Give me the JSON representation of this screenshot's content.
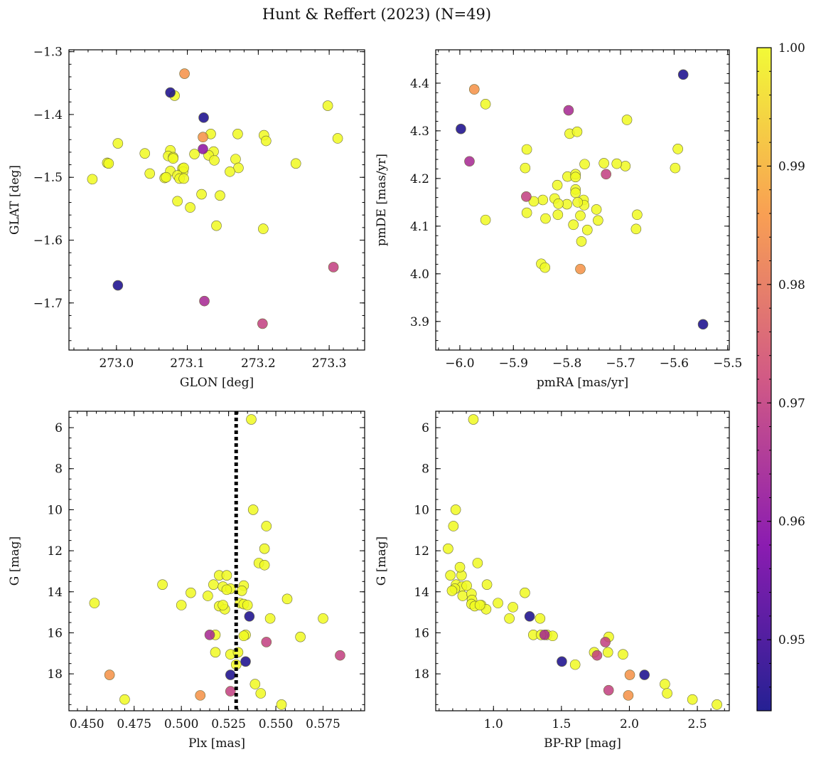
{
  "chart_data": {
    "title": "Hunt & Reffert (2023) (N=49)",
    "colorbar": {
      "range": [
        0.944,
        1.0
      ],
      "ticks": [
        "0.95",
        "0.96",
        "0.97",
        "0.98",
        "0.99",
        "1.00"
      ],
      "tick_values": [
        0.95,
        0.96,
        0.97,
        0.98,
        0.99,
        1.0
      ],
      "colormap": "plasma"
    },
    "panels": [
      {
        "type": "scatter",
        "xlabel": "GLON [deg]",
        "ylabel": "GLAT [deg]",
        "xlim": [
          272.933,
          273.35
        ],
        "ylim": [
          -1.775,
          -1.297
        ],
        "y_inverted": false,
        "xticks": [
          273.0,
          273.1,
          273.2,
          273.3
        ],
        "xtick_labels": [
          "273.0",
          "273.1",
          "273.2",
          "273.3"
        ],
        "yticks": [
          -1.3,
          -1.4,
          -1.5,
          -1.6,
          -1.7
        ],
        "ytick_labels": [
          "−1.3",
          "−1.4",
          "−1.5",
          "−1.6",
          "−1.7"
        ],
        "points": [
          [
            273.096,
            -1.335,
            0.985
          ],
          [
            273.076,
            -1.365,
            0.945
          ],
          [
            273.082,
            -1.37,
            1.0
          ],
          [
            273.123,
            -1.405,
            0.945
          ],
          [
            273.298,
            -1.386,
            1.0
          ],
          [
            273.122,
            -1.436,
            0.985
          ],
          [
            273.133,
            -1.431,
            1.0
          ],
          [
            273.171,
            -1.431,
            1.0
          ],
          [
            273.208,
            -1.433,
            1.0
          ],
          [
            273.211,
            -1.442,
            1.0
          ],
          [
            273.312,
            -1.438,
            1.0
          ],
          [
            273.002,
            -1.446,
            1.0
          ],
          [
            273.122,
            -1.455,
            0.96
          ],
          [
            273.137,
            -1.459,
            1.0
          ],
          [
            273.13,
            -1.465,
            1.0
          ],
          [
            273.138,
            -1.473,
            1.0
          ],
          [
            273.076,
            -1.457,
            1.0
          ],
          [
            273.04,
            -1.462,
            1.0
          ],
          [
            273.073,
            -1.466,
            1.0
          ],
          [
            273.08,
            -1.468,
            1.0
          ],
          [
            273.11,
            -1.463,
            1.0
          ],
          [
            273.168,
            -1.471,
            1.0
          ],
          [
            273.172,
            -1.485,
            1.0
          ],
          [
            273.16,
            -1.491,
            1.0
          ],
          [
            272.987,
            -1.477,
            1.0
          ],
          [
            272.989,
            -1.478,
            1.0
          ],
          [
            273.253,
            -1.478,
            1.0
          ],
          [
            273.047,
            -1.494,
            1.0
          ],
          [
            273.076,
            -1.49,
            1.0
          ],
          [
            273.093,
            -1.486,
            1.0
          ],
          [
            273.094,
            -1.491,
            1.0
          ],
          [
            273.086,
            -1.497,
            1.0
          ],
          [
            273.068,
            -1.501,
            1.0
          ],
          [
            273.089,
            -1.502,
            1.0
          ],
          [
            273.095,
            -1.502,
            1.0
          ],
          [
            272.966,
            -1.503,
            1.0
          ],
          [
            273.12,
            -1.527,
            1.0
          ],
          [
            273.146,
            -1.529,
            1.0
          ],
          [
            273.086,
            -1.538,
            1.0
          ],
          [
            273.104,
            -1.548,
            1.0
          ],
          [
            273.141,
            -1.577,
            1.0
          ],
          [
            273.207,
            -1.582,
            1.0
          ],
          [
            273.306,
            -1.643,
            0.97
          ],
          [
            273.002,
            -1.672,
            0.945
          ],
          [
            273.124,
            -1.697,
            0.965
          ],
          [
            273.206,
            -1.733,
            0.97
          ],
          [
            273.07,
            -1.5,
            1.0
          ],
          [
            273.08,
            -1.47,
            1.0
          ],
          [
            273.095,
            -1.485,
            1.0
          ]
        ]
      },
      {
        "type": "scatter",
        "xlabel": "pmRA [mas/yr]",
        "ylabel": "pmDE [mas/yr]",
        "xlim": [
          -6.045,
          -5.497
        ],
        "ylim": [
          3.84,
          4.47
        ],
        "y_inverted": false,
        "xticks": [
          -6.0,
          -5.9,
          -5.8,
          -5.7,
          -5.6,
          -5.5
        ],
        "xtick_labels": [
          "−6.0",
          "−5.9",
          "−5.8",
          "−5.7",
          "−5.6",
          "−5.5"
        ],
        "yticks": [
          3.9,
          4.0,
          4.1,
          4.2,
          4.3,
          4.4
        ],
        "ytick_labels": [
          "3.9",
          "4.0",
          "4.1",
          "4.2",
          "4.3",
          "4.4"
        ],
        "points": [
          [
            -5.583,
            4.418,
            0.945
          ],
          [
            -5.973,
            4.387,
            0.985
          ],
          [
            -5.952,
            4.356,
            1.0
          ],
          [
            -5.998,
            4.304,
            0.945
          ],
          [
            -5.797,
            4.343,
            0.965
          ],
          [
            -5.795,
            4.294,
            1.0
          ],
          [
            -5.781,
            4.298,
            1.0
          ],
          [
            -5.688,
            4.323,
            1.0
          ],
          [
            -5.982,
            4.236,
            0.965
          ],
          [
            -5.875,
            4.261,
            1.0
          ],
          [
            -5.878,
            4.222,
            1.0
          ],
          [
            -5.593,
            4.262,
            1.0
          ],
          [
            -5.598,
            4.222,
            1.0
          ],
          [
            -5.691,
            4.226,
            1.0
          ],
          [
            -5.767,
            4.23,
            1.0
          ],
          [
            -5.731,
            4.232,
            1.0
          ],
          [
            -5.707,
            4.231,
            1.0
          ],
          [
            -5.727,
            4.209,
            0.97
          ],
          [
            -5.799,
            4.204,
            1.0
          ],
          [
            -5.784,
            4.209,
            1.0
          ],
          [
            -5.784,
            4.203,
            1.0
          ],
          [
            -5.818,
            4.186,
            1.0
          ],
          [
            -5.784,
            4.177,
            1.0
          ],
          [
            -5.784,
            4.17,
            1.0
          ],
          [
            -5.876,
            4.162,
            0.97
          ],
          [
            -5.823,
            4.158,
            1.0
          ],
          [
            -5.845,
            4.155,
            1.0
          ],
          [
            -5.862,
            4.152,
            1.0
          ],
          [
            -5.8,
            4.146,
            1.0
          ],
          [
            -5.816,
            4.147,
            1.0
          ],
          [
            -5.769,
            4.155,
            1.0
          ],
          [
            -5.768,
            4.144,
            1.0
          ],
          [
            -5.875,
            4.128,
            1.0
          ],
          [
            -5.817,
            4.124,
            1.0
          ],
          [
            -5.84,
            4.116,
            1.0
          ],
          [
            -5.745,
            4.135,
            1.0
          ],
          [
            -5.775,
            4.122,
            1.0
          ],
          [
            -5.952,
            4.113,
            1.0
          ],
          [
            -5.742,
            4.112,
            1.0
          ],
          [
            -5.788,
            4.103,
            1.0
          ],
          [
            -5.762,
            4.092,
            1.0
          ],
          [
            -5.669,
            4.124,
            1.0
          ],
          [
            -5.671,
            4.094,
            1.0
          ],
          [
            -5.773,
            4.068,
            1.0
          ],
          [
            -5.848,
            4.021,
            1.0
          ],
          [
            -5.841,
            4.013,
            1.0
          ],
          [
            -5.775,
            4.01,
            0.985
          ],
          [
            -5.546,
            3.894,
            0.945
          ],
          [
            -5.78,
            4.15,
            1.0
          ]
        ]
      },
      {
        "type": "scatter",
        "xlabel": "Plx [mas]",
        "ylabel": "G [mag]",
        "xlim": [
          0.4405,
          0.597
        ],
        "ylim": [
          5.2,
          19.8
        ],
        "y_inverted": true,
        "vline": 0.529,
        "xticks": [
          0.45,
          0.475,
          0.5,
          0.525,
          0.55,
          0.575
        ],
        "xtick_labels": [
          "0.450",
          "0.475",
          "0.500",
          "0.525",
          "0.550",
          "0.575"
        ],
        "yticks": [
          6,
          8,
          10,
          12,
          14,
          16,
          18
        ],
        "ytick_labels": [
          "6",
          "8",
          "10",
          "12",
          "14",
          "16",
          "18"
        ],
        "points": [
          [
            0.537,
            5.6,
            1.0
          ],
          [
            0.538,
            10.0,
            1.0
          ],
          [
            0.545,
            10.8,
            1.0
          ],
          [
            0.544,
            11.9,
            1.0
          ],
          [
            0.541,
            12.6,
            1.0
          ],
          [
            0.544,
            12.7,
            1.0
          ],
          [
            0.52,
            13.2,
            1.0
          ],
          [
            0.524,
            13.2,
            1.0
          ],
          [
            0.49,
            13.65,
            1.0
          ],
          [
            0.517,
            13.65,
            1.0
          ],
          [
            0.522,
            13.75,
            1.0
          ],
          [
            0.526,
            13.85,
            1.0
          ],
          [
            0.533,
            13.7,
            1.0
          ],
          [
            0.524,
            13.9,
            1.0
          ],
          [
            0.505,
            14.05,
            1.0
          ],
          [
            0.514,
            14.2,
            1.0
          ],
          [
            0.454,
            14.55,
            1.0
          ],
          [
            0.556,
            14.35,
            1.0
          ],
          [
            0.531,
            14.55,
            1.0
          ],
          [
            0.533,
            14.6,
            1.0
          ],
          [
            0.535,
            14.65,
            1.0
          ],
          [
            0.5,
            14.65,
            1.0
          ],
          [
            0.52,
            14.7,
            1.0
          ],
          [
            0.523,
            14.85,
            1.0
          ],
          [
            0.536,
            15.2,
            0.945
          ],
          [
            0.547,
            15.3,
            1.0
          ],
          [
            0.575,
            15.3,
            1.0
          ],
          [
            0.515,
            16.1,
            0.965
          ],
          [
            0.518,
            16.1,
            1.0
          ],
          [
            0.534,
            16.1,
            1.0
          ],
          [
            0.533,
            16.15,
            1.0
          ],
          [
            0.563,
            16.2,
            1.0
          ],
          [
            0.545,
            16.45,
            0.97
          ],
          [
            0.584,
            17.1,
            0.97
          ],
          [
            0.518,
            16.95,
            1.0
          ],
          [
            0.526,
            17.05,
            1.0
          ],
          [
            0.53,
            16.95,
            1.0
          ],
          [
            0.534,
            17.4,
            0.945
          ],
          [
            0.529,
            17.55,
            1.0
          ],
          [
            0.462,
            18.05,
            0.985
          ],
          [
            0.526,
            18.05,
            0.945
          ],
          [
            0.539,
            18.5,
            1.0
          ],
          [
            0.526,
            18.85,
            0.97
          ],
          [
            0.542,
            18.95,
            1.0
          ],
          [
            0.51,
            19.05,
            0.985
          ],
          [
            0.47,
            19.25,
            1.0
          ],
          [
            0.553,
            19.5,
            1.0
          ],
          [
            0.532,
            13.95,
            1.0
          ],
          [
            0.522,
            14.65,
            1.0
          ]
        ]
      },
      {
        "type": "scatter",
        "xlabel": "BP-RP [mag]",
        "ylabel": "G [mag]",
        "xlim": [
          0.575,
          2.735
        ],
        "ylim": [
          5.2,
          19.8
        ],
        "y_inverted": true,
        "xticks": [
          1.0,
          1.5,
          2.0,
          2.5
        ],
        "xtick_labels": [
          "1.0",
          "1.5",
          "2.0",
          "2.5"
        ],
        "yticks": [
          6,
          8,
          10,
          12,
          14,
          16,
          18
        ],
        "ytick_labels": [
          "6",
          "8",
          "10",
          "12",
          "14",
          "16",
          "18"
        ],
        "points": [
          [
            0.852,
            5.6,
            1.0
          ],
          [
            0.722,
            10.0,
            1.0
          ],
          [
            0.705,
            10.8,
            1.0
          ],
          [
            0.666,
            11.9,
            1.0
          ],
          [
            0.883,
            12.6,
            1.0
          ],
          [
            0.683,
            13.2,
            1.0
          ],
          [
            0.765,
            13.2,
            1.0
          ],
          [
            0.725,
            13.65,
            1.0
          ],
          [
            0.753,
            12.8,
            1.0
          ],
          [
            0.952,
            13.65,
            1.0
          ],
          [
            0.768,
            13.75,
            1.0
          ],
          [
            0.716,
            13.85,
            1.0
          ],
          [
            0.695,
            13.95,
            1.0
          ],
          [
            0.773,
            14.2,
            1.0
          ],
          [
            0.838,
            14.1,
            1.0
          ],
          [
            1.231,
            14.05,
            1.0
          ],
          [
            0.842,
            14.4,
            1.0
          ],
          [
            1.033,
            14.55,
            1.0
          ],
          [
            0.91,
            14.65,
            1.0
          ],
          [
            0.838,
            14.6,
            1.0
          ],
          [
            0.862,
            14.7,
            1.0
          ],
          [
            0.946,
            14.85,
            1.0
          ],
          [
            1.143,
            14.75,
            1.0
          ],
          [
            1.266,
            15.2,
            0.945
          ],
          [
            1.343,
            15.3,
            1.0
          ],
          [
            1.117,
            15.3,
            1.0
          ],
          [
            1.293,
            16.1,
            1.0
          ],
          [
            1.376,
            16.1,
            0.965
          ],
          [
            1.393,
            16.1,
            1.0
          ],
          [
            1.435,
            16.15,
            1.0
          ],
          [
            1.848,
            16.2,
            1.0
          ],
          [
            1.823,
            16.45,
            0.97
          ],
          [
            1.741,
            16.95,
            1.0
          ],
          [
            1.762,
            17.1,
            0.97
          ],
          [
            1.842,
            16.95,
            1.0
          ],
          [
            1.953,
            17.05,
            1.0
          ],
          [
            1.503,
            17.4,
            0.945
          ],
          [
            1.601,
            17.55,
            1.0
          ],
          [
            2.003,
            18.05,
            0.985
          ],
          [
            2.111,
            18.05,
            0.945
          ],
          [
            2.261,
            18.5,
            1.0
          ],
          [
            1.847,
            18.8,
            0.97
          ],
          [
            2.278,
            18.95,
            1.0
          ],
          [
            1.992,
            19.05,
            0.985
          ],
          [
            2.464,
            19.25,
            1.0
          ],
          [
            2.644,
            19.5,
            1.0
          ],
          [
            0.803,
            13.7,
            1.0
          ],
          [
            0.9,
            14.65,
            1.0
          ],
          [
            1.35,
            16.1,
            1.0
          ]
        ]
      }
    ]
  }
}
